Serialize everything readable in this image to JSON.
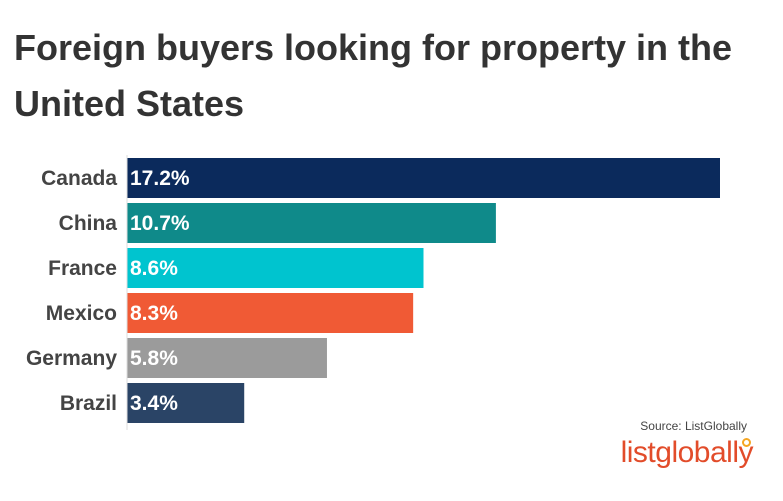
{
  "chart_data": {
    "type": "bar",
    "orientation": "horizontal",
    "title": "Foreign buyers looking for property in the United States",
    "categories": [
      "Canada",
      "China",
      "France",
      "Mexico",
      "Germany",
      "Brazil"
    ],
    "values": [
      17.2,
      10.7,
      8.6,
      8.3,
      5.8,
      3.4
    ],
    "value_labels": [
      "17.2%",
      "10.7%",
      "8.6%",
      "8.3%",
      "5.8%",
      "3.4%"
    ],
    "colors": [
      "#0b2a5c",
      "#0f8a8a",
      "#00c4cf",
      "#f05a35",
      "#9b9b9b",
      "#2a4466"
    ],
    "xlim": [
      0,
      17.2
    ],
    "grid": false,
    "legend": "none"
  },
  "source": "Source: ListGlobally",
  "logo": {
    "text": "listglobally",
    "color": "#e24c2a",
    "accent": "#f5a623"
  }
}
